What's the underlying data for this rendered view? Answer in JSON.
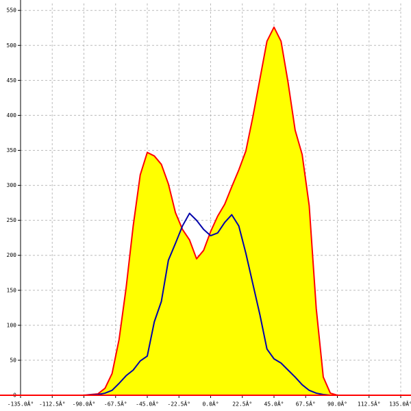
{
  "chart_data": {
    "type": "area",
    "x": [
      -90,
      -80,
      -75,
      -70,
      -65,
      -60,
      -55,
      -50,
      -45,
      -40,
      -35,
      -30,
      -25,
      -20,
      -15,
      -10,
      -5,
      0,
      5,
      10,
      15,
      20,
      25,
      30,
      35,
      40,
      45,
      50,
      55,
      60,
      65,
      70,
      75,
      80,
      85,
      90
    ],
    "series": [
      {
        "style": "area",
        "color": "#ff0000",
        "fill": "#ffff00",
        "values": [
          0,
          2,
          10,
          31,
          80,
          154,
          242,
          315,
          347,
          342,
          330,
          302,
          261,
          237,
          222,
          195,
          207,
          234,
          256,
          273,
          298,
          322,
          349,
          398,
          452,
          506,
          526,
          506,
          447,
          379,
          344,
          271,
          124,
          26,
          3,
          0
        ]
      },
      {
        "style": "line",
        "color": "#0000aa",
        "values": [
          0,
          1,
          3,
          7,
          17,
          28,
          36,
          49,
          56,
          105,
          134,
          193,
          217,
          242,
          260,
          250,
          237,
          228,
          232,
          247,
          258,
          242,
          203,
          159,
          115,
          66,
          52,
          46,
          36,
          26,
          15,
          7,
          3,
          1,
          0,
          0
        ]
      }
    ],
    "xlim": [
      -135,
      135
    ],
    "xticks": [
      {
        "value": -135,
        "label": "-135.0Â°"
      },
      {
        "value": -112.5,
        "label": "-112.5Â°"
      },
      {
        "value": -90,
        "label": "-90.0Â°"
      },
      {
        "value": -67.5,
        "label": "-67.5Â°"
      },
      {
        "value": -45,
        "label": "-45.0Â°"
      },
      {
        "value": -22.5,
        "label": "-22.5Â°"
      },
      {
        "value": 0,
        "label": "0.0Â°"
      },
      {
        "value": 22.5,
        "label": "22.5Â°"
      },
      {
        "value": 45,
        "label": "45.0Â°"
      },
      {
        "value": 67.5,
        "label": "67.5Â°"
      },
      {
        "value": 90,
        "label": "90.0Â°"
      },
      {
        "value": 112.5,
        "label": "112.5Â°"
      },
      {
        "value": 135,
        "label": "135.0Â°"
      }
    ],
    "ylim": [
      0,
      560
    ],
    "yticks": [
      0,
      50,
      100,
      150,
      200,
      250,
      300,
      350,
      400,
      450,
      500,
      550
    ],
    "grid": true
  }
}
